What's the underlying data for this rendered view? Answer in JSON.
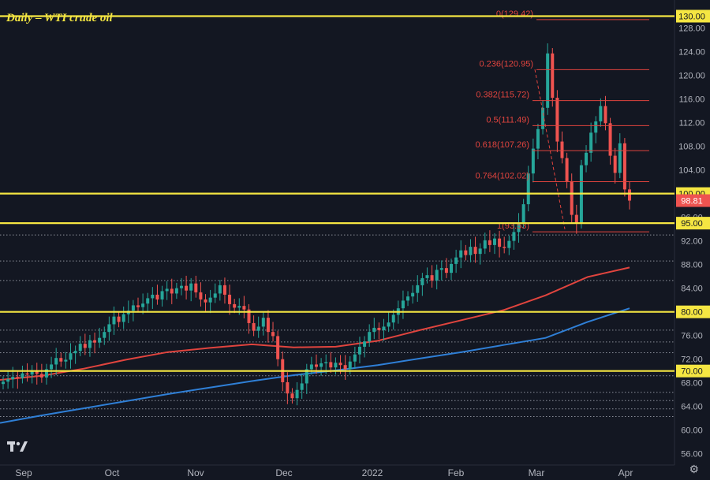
{
  "chart_data": {
    "type": "candlestick",
    "title": "Daily – WTI crude oil",
    "ylim": [
      54.5,
      131.8
    ],
    "y_ticks": [
      "56.00",
      "60.00",
      "64.00",
      "68.00",
      "72.00",
      "76.00",
      "80.00",
      "84.00",
      "88.00",
      "92.00",
      "96.00",
      "100.00",
      "104.00",
      "108.00",
      "112.00",
      "116.00",
      "120.00",
      "124.00",
      "128.00"
    ],
    "x_ticks": [
      "Sep",
      "Oct",
      "Nov",
      "Dec",
      "2022",
      "Feb",
      "Mar",
      "Apr"
    ],
    "last_price": "98.81",
    "horizontal_levels": [
      {
        "label": "130.00",
        "value": 130.0
      },
      {
        "label": "100.00",
        "value": 100.0
      },
      {
        "label": "95.00",
        "value": 95.0
      },
      {
        "label": "80.00",
        "value": 80.0
      },
      {
        "label": "70.00",
        "value": 70.0
      }
    ],
    "fibonacci": [
      {
        "label": "0(129.42)",
        "value": 129.42
      },
      {
        "label": "0.236(120.95)",
        "value": 120.95
      },
      {
        "label": "0.382(115.72)",
        "value": 115.72
      },
      {
        "label": "0.5(111.49)",
        "value": 111.49
      },
      {
        "label": "0.618(107.26)",
        "value": 107.26
      },
      {
        "label": "0.764(102.02)",
        "value": 102.02
      },
      {
        "label": "1(93.53)",
        "value": 93.53
      }
    ],
    "moving_averages": [
      {
        "color": "#e0443e",
        "values": [
          68.5,
          69.2,
          70.4,
          71.9,
          73.2,
          73.9,
          74.5,
          74.0,
          74.1,
          75.1,
          76.9,
          78.6,
          80.3,
          82.8,
          85.9,
          87.5
        ]
      },
      {
        "color": "#2f7fd6",
        "values": [
          61.2,
          62.5,
          63.7,
          64.9,
          66.1,
          67.2,
          68.3,
          69.3,
          70.1,
          71.0,
          72.1,
          73.2,
          74.4,
          75.6,
          78.3,
          80.6
        ]
      }
    ],
    "ohlc_close": [
      68.2,
      68.6,
      69.0,
      68.8,
      69.6,
      69.4,
      70.1,
      69.5,
      68.9,
      70.3,
      71.1,
      72.2,
      71.6,
      71.9,
      73.0,
      73.4,
      74.6,
      73.9,
      75.2,
      74.8,
      75.6,
      76.6,
      77.9,
      79.2,
      78.3,
      79.6,
      80.2,
      81.1,
      80.8,
      81.4,
      82.3,
      82.9,
      82.1,
      83.5,
      83.9,
      83.1,
      84.0,
      84.4,
      83.6,
      84.8,
      83.3,
      82.1,
      81.6,
      82.4,
      83.1,
      84.5,
      82.9,
      81.3,
      80.7,
      81.0,
      80.4,
      78.1,
      76.8,
      77.5,
      79.0,
      76.6,
      75.9,
      72.0,
      68.1,
      66.2,
      65.4,
      66.8,
      67.9,
      70.3,
      71.1,
      70.7,
      71.3,
      71.5,
      70.6,
      71.4,
      71.0,
      70.3,
      71.6,
      72.8,
      74.1,
      75.0,
      76.6,
      77.3,
      76.9,
      77.5,
      78.2,
      79.5,
      80.6,
      81.9,
      82.6,
      83.2,
      84.5,
      85.7,
      86.2,
      85.3,
      87.1,
      87.4,
      86.6,
      88.1,
      89.2,
      90.4,
      89.6,
      91.0,
      89.8,
      90.7,
      92.1,
      91.3,
      92.4,
      91.0,
      90.8,
      92.0,
      93.5,
      95.0,
      98.2,
      103.4,
      107.6,
      110.9,
      114.5,
      123.7,
      116.2,
      108.8,
      106.0,
      102.1,
      96.4,
      95.0,
      104.8,
      106.9,
      110.3,
      112.2,
      114.8,
      111.9,
      106.4,
      103.5,
      108.5,
      100.7,
      98.81
    ]
  },
  "settings_icon": "gear-icon",
  "logo_icon": "tradingview-logo-icon"
}
